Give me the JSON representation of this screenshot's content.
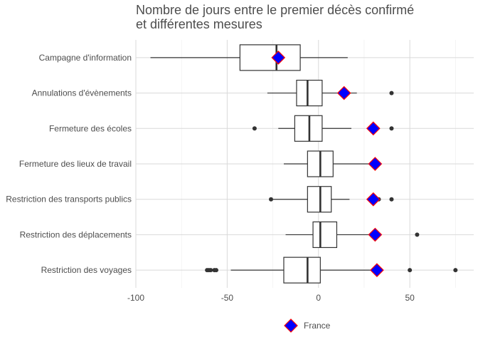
{
  "chart_data": {
    "type": "boxplot",
    "title_lines": [
      "Nombre de jours entre le premier décès confirmé",
      "et différentes mesures"
    ],
    "xlabel": "",
    "ylabel": "",
    "xlim": [
      -100,
      85
    ],
    "x_ticks": [
      -100,
      -50,
      0,
      50
    ],
    "x_tick_labels": [
      "-100",
      "-50",
      "0",
      "50"
    ],
    "grid": true,
    "legend_position": "bottom",
    "categories": [
      "Campagne d'information",
      "Annulations d'évènements",
      "Fermeture des écoles",
      "Fermeture des lieux de travail",
      "Restriction des transports publics",
      "Restriction des déplacements",
      "Restriction des voyages"
    ],
    "boxes": [
      {
        "whisker_low": -92,
        "q1": -43,
        "median": -23,
        "q3": -10,
        "whisker_high": 16,
        "outliers": []
      },
      {
        "whisker_low": -28,
        "q1": -12,
        "median": -6,
        "q3": 2,
        "whisker_high": 21,
        "outliers": [
          40
        ]
      },
      {
        "whisker_low": -22,
        "q1": -13,
        "median": -5,
        "q3": 2,
        "whisker_high": 18,
        "outliers": [
          -35,
          40
        ]
      },
      {
        "whisker_low": -19,
        "q1": -6,
        "median": 1,
        "q3": 8,
        "whisker_high": 30,
        "outliers": []
      },
      {
        "whisker_low": -26,
        "q1": -6,
        "median": 1,
        "q3": 7,
        "whisker_high": 17,
        "outliers": [
          -26,
          33,
          40
        ]
      },
      {
        "whisker_low": -18,
        "q1": -3,
        "median": 1,
        "q3": 10,
        "whisker_high": 30,
        "outliers": [
          54
        ]
      },
      {
        "whisker_low": -48,
        "q1": -19,
        "median": -6,
        "q3": 1,
        "whisker_high": 32,
        "outliers": [
          -61,
          -60,
          -59,
          -57,
          -56,
          50,
          75
        ]
      }
    ],
    "highlight_series": {
      "name": "France",
      "values": [
        -22,
        14,
        30,
        31,
        30,
        31,
        32
      ],
      "fill_color": "#0000ff",
      "stroke_color": "#ff0000"
    }
  },
  "colors": {
    "box_stroke": "#333333",
    "grid": "#d9d9d9",
    "text": "#4d4d4d"
  }
}
